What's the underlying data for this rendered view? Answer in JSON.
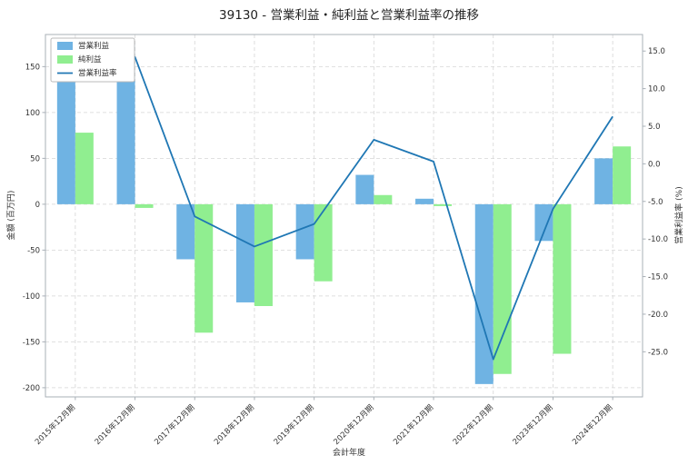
{
  "chart_data": {
    "type": "bar",
    "title": "39130 - 営業利益・純利益と営業利益率の推移",
    "xlabel": "会計年度",
    "ylabel_left": "金額 (百万円)",
    "ylabel_right": "営業利益率 (%)",
    "categories": [
      "2015年12月期",
      "2016年12月期",
      "2017年12月期",
      "2018年12月期",
      "2019年12月期",
      "2020年12月期",
      "2021年12月期",
      "2022年12月期",
      "2023年12月期",
      "2024年12月期"
    ],
    "series": [
      {
        "name": "営業利益",
        "kind": "bar",
        "axis": "left",
        "color": "#6fb3e3",
        "values": [
          155,
          175,
          -60,
          -107,
          -60,
          32,
          6,
          -196,
          -40,
          50
        ]
      },
      {
        "name": "純利益",
        "kind": "bar",
        "axis": "left",
        "color": "#90ee90",
        "values": [
          78,
          -4,
          -140,
          -111,
          -84,
          10,
          -2,
          -185,
          -163,
          63
        ]
      },
      {
        "name": "営業利益率",
        "kind": "line",
        "axis": "right",
        "color": "#1f77b4",
        "values": [
          12.6,
          14.2,
          -7.0,
          -11.0,
          -8.0,
          3.2,
          0.3,
          -26.0,
          -6.0,
          6.3
        ]
      }
    ],
    "y_left": {
      "min": -210,
      "max": 185,
      "ticks": [
        150,
        100,
        50,
        0,
        -50,
        -100,
        -150,
        -200
      ]
    },
    "y_right": {
      "min": -31,
      "max": 17.2,
      "ticks": [
        15.0,
        10.0,
        5.0,
        0.0,
        -5.0,
        -10.0,
        -15.0,
        -20.0,
        -25.0
      ]
    },
    "grid": true,
    "legend_position": "upper left",
    "colors": {
      "grid": "#d6d6d6",
      "spine": "#a9b0b7",
      "legend_border": "#bbbbbb",
      "tick_text": "#333333"
    }
  }
}
